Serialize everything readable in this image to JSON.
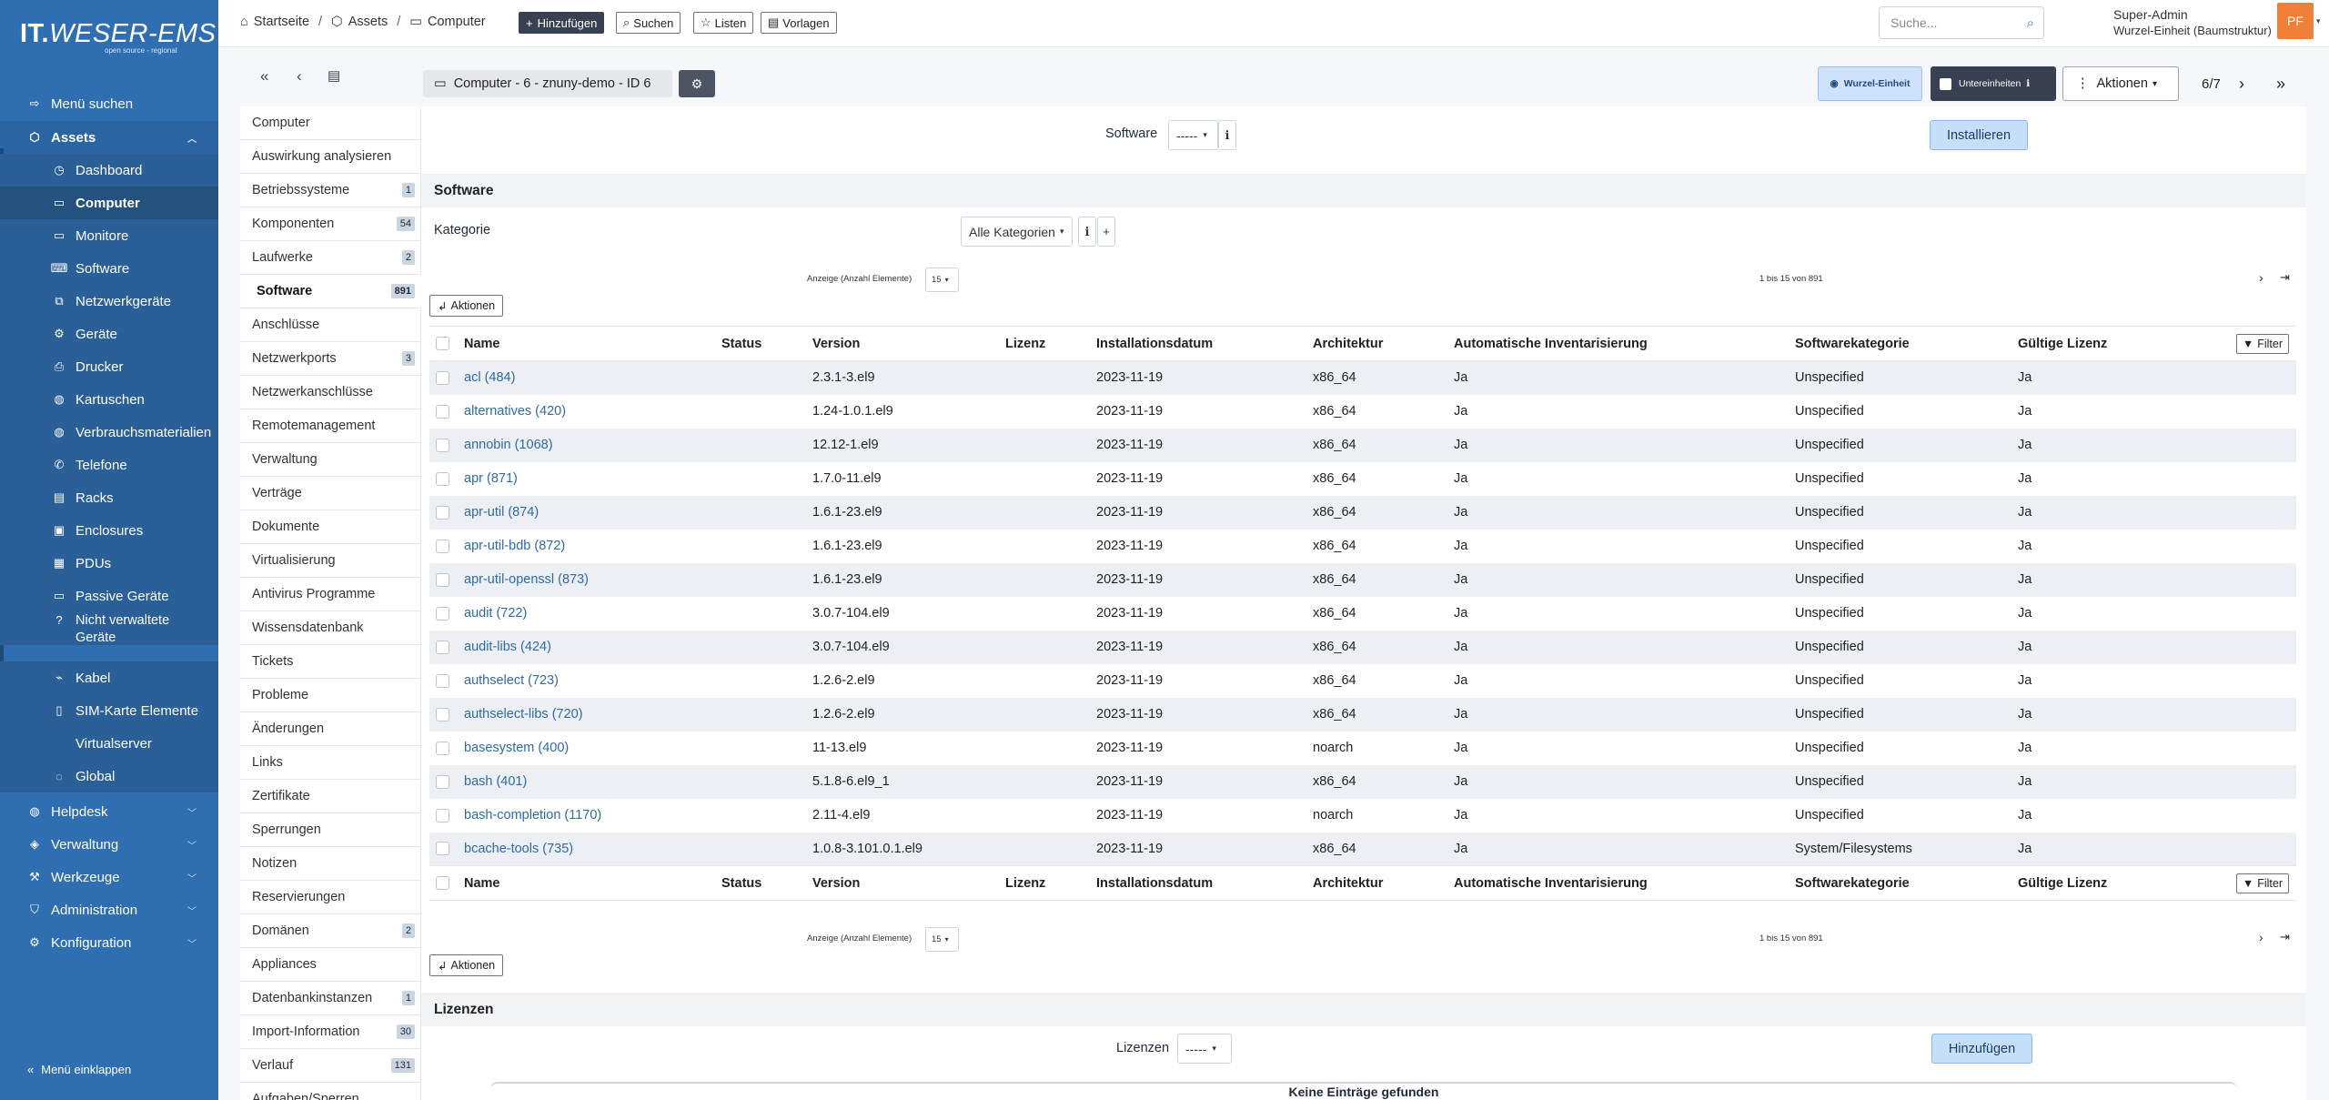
{
  "logo": {
    "text_a": "IT.",
    "text_b": "WESER-EMS",
    "tagline": "open source - regional"
  },
  "sidebar": {
    "search_menu": "Menü suchen",
    "assets": "Assets",
    "items": [
      "Dashboard",
      "Computer",
      "Monitore",
      "Software",
      "Netzwerkgeräte",
      "Geräte",
      "Drucker",
      "Kartuschen",
      "Verbrauchsmaterialien",
      "Telefone",
      "Racks",
      "Enclosures",
      "PDUs",
      "Passive Geräte",
      "Nicht verwaltete Geräte",
      "Kabel",
      "SIM-Karte Elemente",
      "Virtualserver",
      "Global"
    ],
    "groups": [
      "Helpdesk",
      "Verwaltung",
      "Werkzeuge",
      "Administration",
      "Konfiguration"
    ],
    "collapse": "Menü einklappen"
  },
  "topbar": {
    "breadcrumb": [
      "Startseite",
      "Assets",
      "Computer"
    ],
    "buttons": [
      "Hinzufügen",
      "Suchen",
      "Listen",
      "Vorlagen"
    ],
    "search_placeholder": "Suche...",
    "user_name": "Super-Admin",
    "user_entity": "Wurzel-Einheit (Baumstruktur)",
    "avatar": "PF"
  },
  "header": {
    "title": "Computer - 6 - znuny-demo - ID 6",
    "wurzel": "Wurzel-Einheit",
    "unter": "Untereinheiten",
    "aktionen": "Aktionen",
    "pager": "6/7"
  },
  "tabs": [
    {
      "label": "Computer",
      "badge": ""
    },
    {
      "label": "Auswirkung analysieren",
      "badge": ""
    },
    {
      "label": "Betriebssysteme",
      "badge": "1"
    },
    {
      "label": "Komponenten",
      "badge": "54"
    },
    {
      "label": "Laufwerke",
      "badge": "2"
    },
    {
      "label": "Software",
      "badge": "891"
    },
    {
      "label": "Anschlüsse",
      "badge": ""
    },
    {
      "label": "Netzwerkports",
      "badge": "3"
    },
    {
      "label": "Netzwerkanschlüsse",
      "badge": ""
    },
    {
      "label": "Remotemanagement",
      "badge": ""
    },
    {
      "label": "Verwaltung",
      "badge": ""
    },
    {
      "label": "Verträge",
      "badge": ""
    },
    {
      "label": "Dokumente",
      "badge": ""
    },
    {
      "label": "Virtualisierung",
      "badge": ""
    },
    {
      "label": "Antivirus Programme",
      "badge": ""
    },
    {
      "label": "Wissensdatenbank",
      "badge": ""
    },
    {
      "label": "Tickets",
      "badge": ""
    },
    {
      "label": "Probleme",
      "badge": ""
    },
    {
      "label": "Änderungen",
      "badge": ""
    },
    {
      "label": "Links",
      "badge": ""
    },
    {
      "label": "Zertifikate",
      "badge": ""
    },
    {
      "label": "Sperrungen",
      "badge": ""
    },
    {
      "label": "Notizen",
      "badge": ""
    },
    {
      "label": "Reservierungen",
      "badge": ""
    },
    {
      "label": "Domänen",
      "badge": "2"
    },
    {
      "label": "Appliances",
      "badge": ""
    },
    {
      "label": "Datenbankinstanzen",
      "badge": "1"
    },
    {
      "label": "Import-Information",
      "badge": "30"
    },
    {
      "label": "Verlauf",
      "badge": "131"
    },
    {
      "label": "Aufgaben/Sperren",
      "badge": ""
    }
  ],
  "main": {
    "software_label": "Software",
    "software_select": "-----",
    "install_btn": "Installieren",
    "section_software": "Software",
    "kategorie_label": "Kategorie",
    "kategorie_select": "Alle Kategorien",
    "display_label": "Anzeige (Anzahl Elemente)",
    "display_count": "15",
    "range": "1 bis 15 von 891",
    "aktionen_btn": "Aktionen",
    "columns": [
      "Name",
      "Status",
      "Version",
      "Lizenz",
      "Installationsdatum",
      "Architektur",
      "Automatische Inventarisierung",
      "Softwarekategorie",
      "Gültige Lizenz"
    ],
    "filter_btn": "Filter",
    "rows": [
      [
        "acl (484)",
        "",
        "2.3.1-3.el9",
        "",
        "2023-11-19",
        "x86_64",
        "Ja",
        "Unspecified",
        "Ja"
      ],
      [
        "alternatives (420)",
        "",
        "1.24-1.0.1.el9",
        "",
        "2023-11-19",
        "x86_64",
        "Ja",
        "Unspecified",
        "Ja"
      ],
      [
        "annobin (1068)",
        "",
        "12.12-1.el9",
        "",
        "2023-11-19",
        "x86_64",
        "Ja",
        "Unspecified",
        "Ja"
      ],
      [
        "apr (871)",
        "",
        "1.7.0-11.el9",
        "",
        "2023-11-19",
        "x86_64",
        "Ja",
        "Unspecified",
        "Ja"
      ],
      [
        "apr-util (874)",
        "",
        "1.6.1-23.el9",
        "",
        "2023-11-19",
        "x86_64",
        "Ja",
        "Unspecified",
        "Ja"
      ],
      [
        "apr-util-bdb (872)",
        "",
        "1.6.1-23.el9",
        "",
        "2023-11-19",
        "x86_64",
        "Ja",
        "Unspecified",
        "Ja"
      ],
      [
        "apr-util-openssl (873)",
        "",
        "1.6.1-23.el9",
        "",
        "2023-11-19",
        "x86_64",
        "Ja",
        "Unspecified",
        "Ja"
      ],
      [
        "audit (722)",
        "",
        "3.0.7-104.el9",
        "",
        "2023-11-19",
        "x86_64",
        "Ja",
        "Unspecified",
        "Ja"
      ],
      [
        "audit-libs (424)",
        "",
        "3.0.7-104.el9",
        "",
        "2023-11-19",
        "x86_64",
        "Ja",
        "Unspecified",
        "Ja"
      ],
      [
        "authselect (723)",
        "",
        "1.2.6-2.el9",
        "",
        "2023-11-19",
        "x86_64",
        "Ja",
        "Unspecified",
        "Ja"
      ],
      [
        "authselect-libs (720)",
        "",
        "1.2.6-2.el9",
        "",
        "2023-11-19",
        "x86_64",
        "Ja",
        "Unspecified",
        "Ja"
      ],
      [
        "basesystem (400)",
        "",
        "11-13.el9",
        "",
        "2023-11-19",
        "noarch",
        "Ja",
        "Unspecified",
        "Ja"
      ],
      [
        "bash (401)",
        "",
        "5.1.8-6.el9_1",
        "",
        "2023-11-19",
        "x86_64",
        "Ja",
        "Unspecified",
        "Ja"
      ],
      [
        "bash-completion (1170)",
        "",
        "2.11-4.el9",
        "",
        "2023-11-19",
        "noarch",
        "Ja",
        "Unspecified",
        "Ja"
      ],
      [
        "bcache-tools (735)",
        "",
        "1.0.8-3.101.0.1.el9",
        "",
        "2023-11-19",
        "x86_64",
        "Ja",
        "System/Filesystems",
        "Ja"
      ]
    ],
    "section_lizenzen": "Lizenzen",
    "lizenzen_label": "Lizenzen",
    "lizenzen_select": "-----",
    "add_btn": "Hinzufügen",
    "no_entries": "Keine Einträge gefunden"
  }
}
